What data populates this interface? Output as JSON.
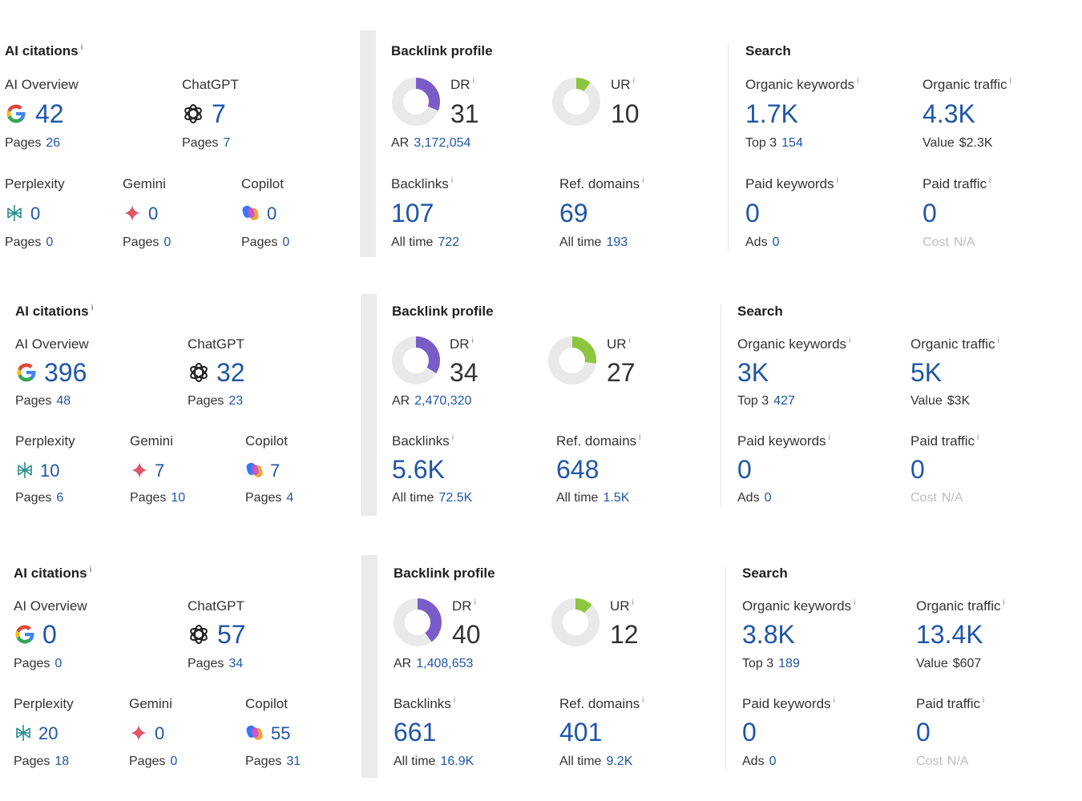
{
  "labels": {
    "ai_citations": "AI citations",
    "ai_overview": "AI Overview",
    "chatgpt": "ChatGPT",
    "perplexity": "Perplexity",
    "gemini": "Gemini",
    "copilot": "Copilot",
    "pages": "Pages",
    "backlink_profile": "Backlink profile",
    "dr": "DR",
    "ur": "UR",
    "ar": "AR",
    "backlinks": "Backlinks",
    "ref_domains": "Ref. domains",
    "all_time": "All time",
    "search": "Search",
    "organic_keywords": "Organic keywords",
    "organic_traffic": "Organic traffic",
    "top3": "Top 3",
    "value": "Value",
    "paid_keywords": "Paid keywords",
    "paid_traffic": "Paid traffic",
    "ads": "Ads",
    "cost": "Cost",
    "info_mark": "i"
  },
  "colors": {
    "link_blue": "#1f56a8",
    "dr_purple": "#7a5cc9",
    "ur_green": "#8cc63f",
    "donut_track": "#e9e9e9"
  },
  "icons": {
    "ai_overview": "google-g-icon",
    "chatgpt": "openai-icon",
    "perplexity": "perplexity-icon",
    "gemini": "gemini-sparkle-icon",
    "copilot": "copilot-icon"
  },
  "rows": [
    {
      "ai": {
        "overview": "42",
        "overview_pages": "26",
        "chatgpt": "7",
        "chatgpt_pages": "7",
        "perplexity": "0",
        "perplexity_pages": "0",
        "gemini": "0",
        "gemini_pages": "0",
        "copilot": "0",
        "copilot_pages": "0"
      },
      "backlink": {
        "dr": "31",
        "dr_fill": 0.31,
        "ur": "10",
        "ur_fill": 0.1,
        "ar": "3,172,054",
        "backlinks": "107",
        "backlinks_all_time": "722",
        "ref_domains": "69",
        "ref_domains_all_time": "193"
      },
      "search": {
        "organic_keywords": "1.7K",
        "top3": "154",
        "organic_traffic": "4.3K",
        "value": "$2.3K",
        "paid_keywords": "0",
        "ads": "0",
        "paid_traffic": "0",
        "cost": "N/A"
      }
    },
    {
      "ai": {
        "overview": "396",
        "overview_pages": "48",
        "chatgpt": "32",
        "chatgpt_pages": "23",
        "perplexity": "10",
        "perplexity_pages": "6",
        "gemini": "7",
        "gemini_pages": "10",
        "copilot": "7",
        "copilot_pages": "4"
      },
      "backlink": {
        "dr": "34",
        "dr_fill": 0.34,
        "ur": "27",
        "ur_fill": 0.27,
        "ar": "2,470,320",
        "backlinks": "5.6K",
        "backlinks_all_time": "72.5K",
        "ref_domains": "648",
        "ref_domains_all_time": "1.5K"
      },
      "search": {
        "organic_keywords": "3K",
        "top3": "427",
        "organic_traffic": "5K",
        "value": "$3K",
        "paid_keywords": "0",
        "ads": "0",
        "paid_traffic": "0",
        "cost": "N/A"
      }
    },
    {
      "ai": {
        "overview": "0",
        "overview_pages": "0",
        "chatgpt": "57",
        "chatgpt_pages": "34",
        "perplexity": "20",
        "perplexity_pages": "18",
        "gemini": "0",
        "gemini_pages": "0",
        "copilot": "55",
        "copilot_pages": "31"
      },
      "backlink": {
        "dr": "40",
        "dr_fill": 0.4,
        "ur": "12",
        "ur_fill": 0.12,
        "ar": "1,408,653",
        "backlinks": "661",
        "backlinks_all_time": "16.9K",
        "ref_domains": "401",
        "ref_domains_all_time": "9.2K"
      },
      "search": {
        "organic_keywords": "3.8K",
        "top3": "189",
        "organic_traffic": "13.4K",
        "value": "$607",
        "paid_keywords": "0",
        "ads": "0",
        "paid_traffic": "0",
        "cost": "N/A"
      }
    }
  ]
}
